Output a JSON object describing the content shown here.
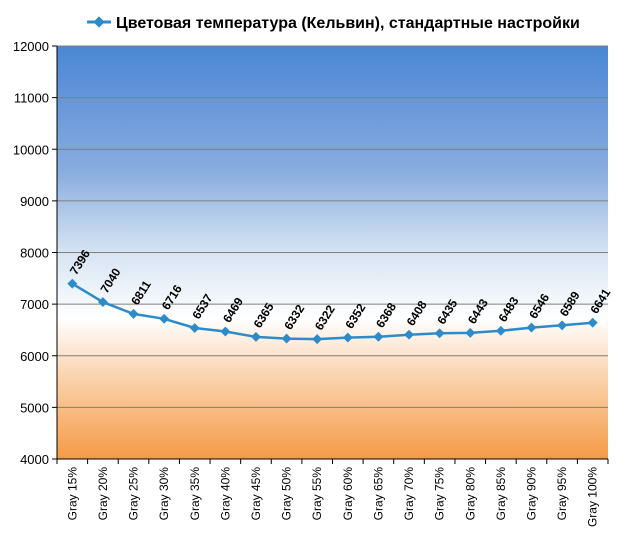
{
  "chart_data": {
    "type": "line",
    "categories": [
      "Gray 15%",
      "Gray 20%",
      "Gray 25%",
      "Gray 30%",
      "Gray 35%",
      "Gray 40%",
      "Gray 45%",
      "Gray 50%",
      "Gray 55%",
      "Gray 60%",
      "Gray 65%",
      "Gray 70%",
      "Gray 75%",
      "Gray 80%",
      "Gray 85%",
      "Gray 90%",
      "Gray 95%",
      "Gray 100%"
    ],
    "series": [
      {
        "name": "Цветовая температура (Кельвин), стандартные настройки",
        "values": [
          7396,
          7040,
          6811,
          6716,
          6537,
          6469,
          6365,
          6332,
          6322,
          6352,
          6368,
          6408,
          6435,
          6443,
          6483,
          6546,
          6589,
          6641
        ],
        "color": "#2e8bc9"
      }
    ],
    "y_ticks": [
      "4000",
      "5000",
      "6000",
      "7000",
      "8000",
      "9000",
      "10000",
      "11000",
      "12000"
    ],
    "ylim": [
      4000,
      12000
    ],
    "grid": true,
    "legend_position": "top",
    "data_labels": true,
    "background_colors": {
      "top": "#4a86d4",
      "middle": "#ffffff",
      "bottom": "#f59a45"
    }
  }
}
